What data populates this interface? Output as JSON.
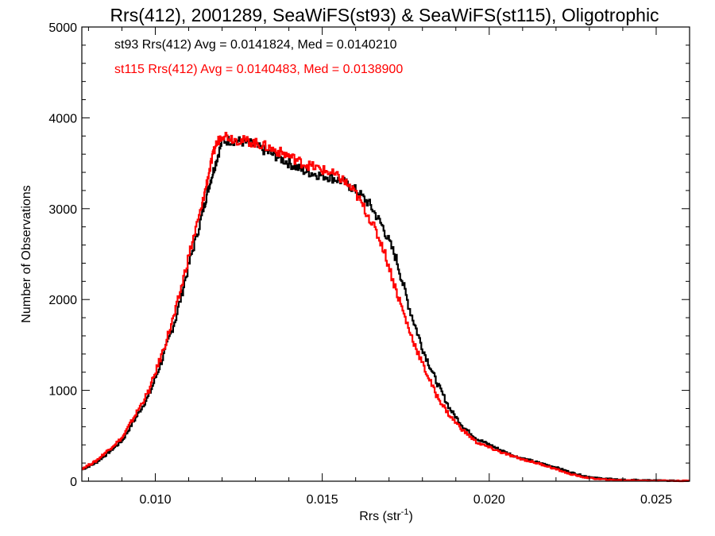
{
  "chart_data": {
    "type": "line",
    "step": true,
    "title": "Rrs(412), 2001289, SeaWiFS(st93) & SeaWiFS(st115), Oligotrophic",
    "xlabel": "Rrs (str",
    "xlabel_sup": "-1",
    "xlabel_end": ")",
    "ylabel": "Number of Observations",
    "xlim": [
      0.0078,
      0.026
    ],
    "ylim": [
      0,
      5000
    ],
    "x_ticks": [
      0.01,
      0.015,
      0.02,
      0.025
    ],
    "x_tick_labels": [
      "0.010",
      "0.015",
      "0.020",
      "0.025"
    ],
    "y_ticks": [
      0,
      1000,
      2000,
      3000,
      4000,
      5000
    ],
    "y_tick_labels": [
      "0",
      "1000",
      "2000",
      "3000",
      "4000",
      "5000"
    ],
    "grid": false,
    "x": [
      0.0078,
      0.0082,
      0.0086,
      0.009,
      0.0094,
      0.0098,
      0.0102,
      0.0106,
      0.011,
      0.0114,
      0.0116,
      0.0118,
      0.012,
      0.0124,
      0.0128,
      0.0132,
      0.0136,
      0.014,
      0.0144,
      0.0148,
      0.0152,
      0.0156,
      0.016,
      0.0164,
      0.0168,
      0.0172,
      0.0176,
      0.018,
      0.0184,
      0.0188,
      0.0192,
      0.0196,
      0.02,
      0.0204,
      0.0208,
      0.0212,
      0.0216,
      0.022,
      0.0224,
      0.0228,
      0.0232,
      0.0236,
      0.024,
      0.0248,
      0.0256,
      0.026
    ],
    "series": [
      {
        "name": "st93",
        "color": "#000000",
        "values": [
          130,
          200,
          320,
          450,
          700,
          950,
          1350,
          1800,
          2400,
          2950,
          3250,
          3500,
          3750,
          3750,
          3720,
          3650,
          3580,
          3500,
          3420,
          3380,
          3350,
          3300,
          3200,
          3050,
          2800,
          2450,
          1900,
          1450,
          1100,
          800,
          600,
          470,
          400,
          330,
          270,
          230,
          190,
          150,
          100,
          60,
          35,
          25,
          15,
          10,
          5,
          5
        ]
      },
      {
        "name": "st115",
        "color": "#ff0000",
        "values": [
          140,
          220,
          350,
          480,
          740,
          1000,
          1420,
          1880,
          2500,
          3050,
          3400,
          3700,
          3820,
          3760,
          3740,
          3700,
          3640,
          3580,
          3500,
          3450,
          3400,
          3320,
          3160,
          2900,
          2580,
          2100,
          1650,
          1280,
          950,
          720,
          560,
          430,
          370,
          310,
          260,
          220,
          180,
          130,
          80,
          45,
          25,
          15,
          10,
          8,
          4,
          4
        ]
      }
    ],
    "annotations": [
      {
        "text": "st93 Rrs(412) Avg = 0.0141824, Med = 0.0140210",
        "color": "#000000"
      },
      {
        "text": "st115 Rrs(412) Avg = 0.0140483, Med = 0.0138900",
        "color": "#ff0000"
      }
    ]
  }
}
